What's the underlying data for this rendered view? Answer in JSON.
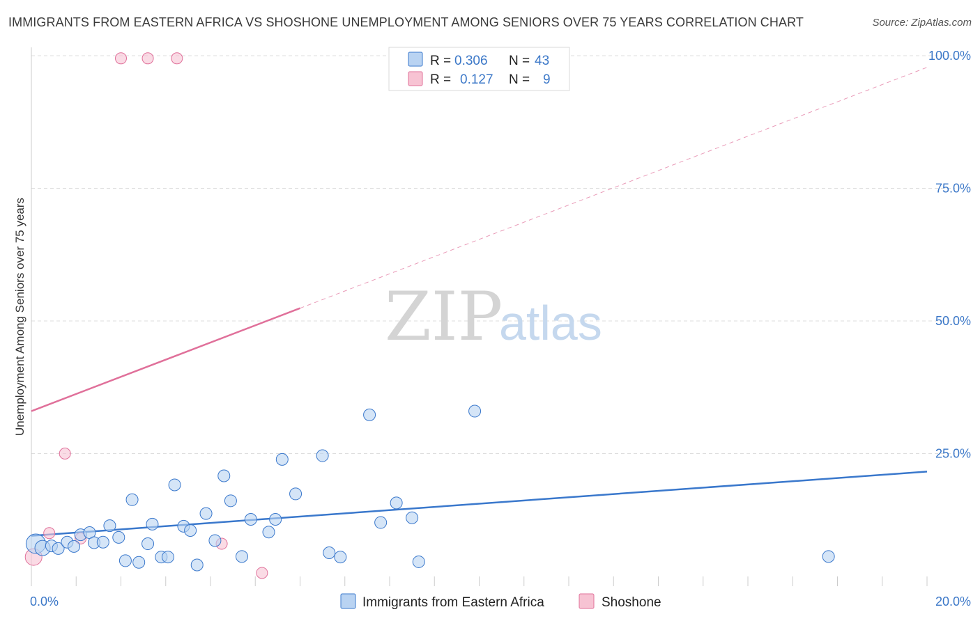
{
  "title": "IMMIGRANTS FROM EASTERN AFRICA VS SHOSHONE UNEMPLOYMENT AMONG SENIORS OVER 75 YEARS CORRELATION CHART",
  "source": "Source: ZipAtlas.com",
  "watermark": {
    "zip": "ZIP",
    "atlas": "atlas"
  },
  "colors": {
    "blue": "#3a78cc",
    "blue_fill": "#b9d3f2",
    "pink": "#e0709a",
    "pink_fill": "#f7c3d3",
    "grid": "#dddddd",
    "tick_label": "#3c78c8"
  },
  "legend": {
    "rows": [
      {
        "r_label": "R =",
        "r_value": "0.306",
        "n_label": "N =",
        "n_value": "43"
      },
      {
        "r_label": "R =",
        "r_value": "0.127",
        "n_label": "N =",
        "n_value": "9"
      }
    ]
  },
  "chart_data": {
    "type": "scatter",
    "title": "IMMIGRANTS FROM EASTERN AFRICA VS SHOSHONE UNEMPLOYMENT AMONG SENIORS OVER 75 YEARS CORRELATION CHART",
    "xlabel": "",
    "ylabel": "Unemployment Among Seniors over 75 years",
    "xlim": [
      0,
      20
    ],
    "ylim": [
      0,
      100
    ],
    "x_tick_labels": [
      {
        "value": 0,
        "label": "0.0%"
      },
      {
        "value": 20,
        "label": "20.0%"
      }
    ],
    "y_tick_labels": [
      {
        "value": 25,
        "label": "25.0%"
      },
      {
        "value": 50,
        "label": "50.0%"
      },
      {
        "value": 75,
        "label": "75.0%"
      },
      {
        "value": 100,
        "label": "100.0%"
      }
    ],
    "grid": true,
    "legend_position": "top-center",
    "series": [
      {
        "name": "Immigrants from Eastern Africa",
        "r": 0.306,
        "n": 43,
        "points": [
          {
            "x": 0.1,
            "y": 8.0
          },
          {
            "x": 0.25,
            "y": 7.2
          },
          {
            "x": 0.45,
            "y": 7.6
          },
          {
            "x": 0.6,
            "y": 7.1
          },
          {
            "x": 0.8,
            "y": 8.3
          },
          {
            "x": 0.95,
            "y": 7.5
          },
          {
            "x": 1.1,
            "y": 9.7
          },
          {
            "x": 1.3,
            "y": 10.1
          },
          {
            "x": 1.4,
            "y": 8.2
          },
          {
            "x": 1.6,
            "y": 8.3
          },
          {
            "x": 1.75,
            "y": 11.4
          },
          {
            "x": 1.95,
            "y": 9.2
          },
          {
            "x": 2.1,
            "y": 4.8
          },
          {
            "x": 2.25,
            "y": 16.3
          },
          {
            "x": 2.4,
            "y": 4.5
          },
          {
            "x": 2.6,
            "y": 8.0
          },
          {
            "x": 2.7,
            "y": 11.7
          },
          {
            "x": 2.9,
            "y": 5.5
          },
          {
            "x": 3.05,
            "y": 5.5
          },
          {
            "x": 3.2,
            "y": 19.1
          },
          {
            "x": 3.4,
            "y": 11.3
          },
          {
            "x": 3.55,
            "y": 10.5
          },
          {
            "x": 3.7,
            "y": 4.0
          },
          {
            "x": 3.9,
            "y": 13.7
          },
          {
            "x": 4.1,
            "y": 8.6
          },
          {
            "x": 4.3,
            "y": 20.8
          },
          {
            "x": 4.45,
            "y": 16.1
          },
          {
            "x": 4.7,
            "y": 5.6
          },
          {
            "x": 4.9,
            "y": 12.6
          },
          {
            "x": 5.3,
            "y": 10.2
          },
          {
            "x": 5.45,
            "y": 12.6
          },
          {
            "x": 5.6,
            "y": 23.9
          },
          {
            "x": 5.9,
            "y": 17.4
          },
          {
            "x": 6.5,
            "y": 24.6
          },
          {
            "x": 6.65,
            "y": 6.3
          },
          {
            "x": 6.9,
            "y": 5.5
          },
          {
            "x": 7.55,
            "y": 32.3
          },
          {
            "x": 7.8,
            "y": 12.0
          },
          {
            "x": 8.15,
            "y": 15.7
          },
          {
            "x": 8.5,
            "y": 12.9
          },
          {
            "x": 8.65,
            "y": 4.6
          },
          {
            "x": 9.9,
            "y": 33.0
          },
          {
            "x": 17.8,
            "y": 5.6
          }
        ],
        "trend": {
          "x0": 0,
          "y0": 9.5,
          "x1": 20,
          "y1": 21.6
        }
      },
      {
        "name": "Shoshone",
        "r": 0.127,
        "n": 9,
        "points": [
          {
            "x": 0.05,
            "y": 5.5
          },
          {
            "x": 0.4,
            "y": 10.0
          },
          {
            "x": 0.75,
            "y": 25.0
          },
          {
            "x": 1.1,
            "y": 9.0
          },
          {
            "x": 2.0,
            "y": 99.5
          },
          {
            "x": 2.6,
            "y": 99.5
          },
          {
            "x": 3.25,
            "y": 99.5
          },
          {
            "x": 4.25,
            "y": 8.0
          },
          {
            "x": 5.15,
            "y": 2.5
          }
        ],
        "trend_solid": {
          "x0": 0,
          "y0": 33.0,
          "x1": 6.0,
          "y1": 52.4
        },
        "trend_dashed": {
          "x0": 6.0,
          "y0": 52.4,
          "x1": 20,
          "y1": 97.8
        }
      }
    ]
  }
}
